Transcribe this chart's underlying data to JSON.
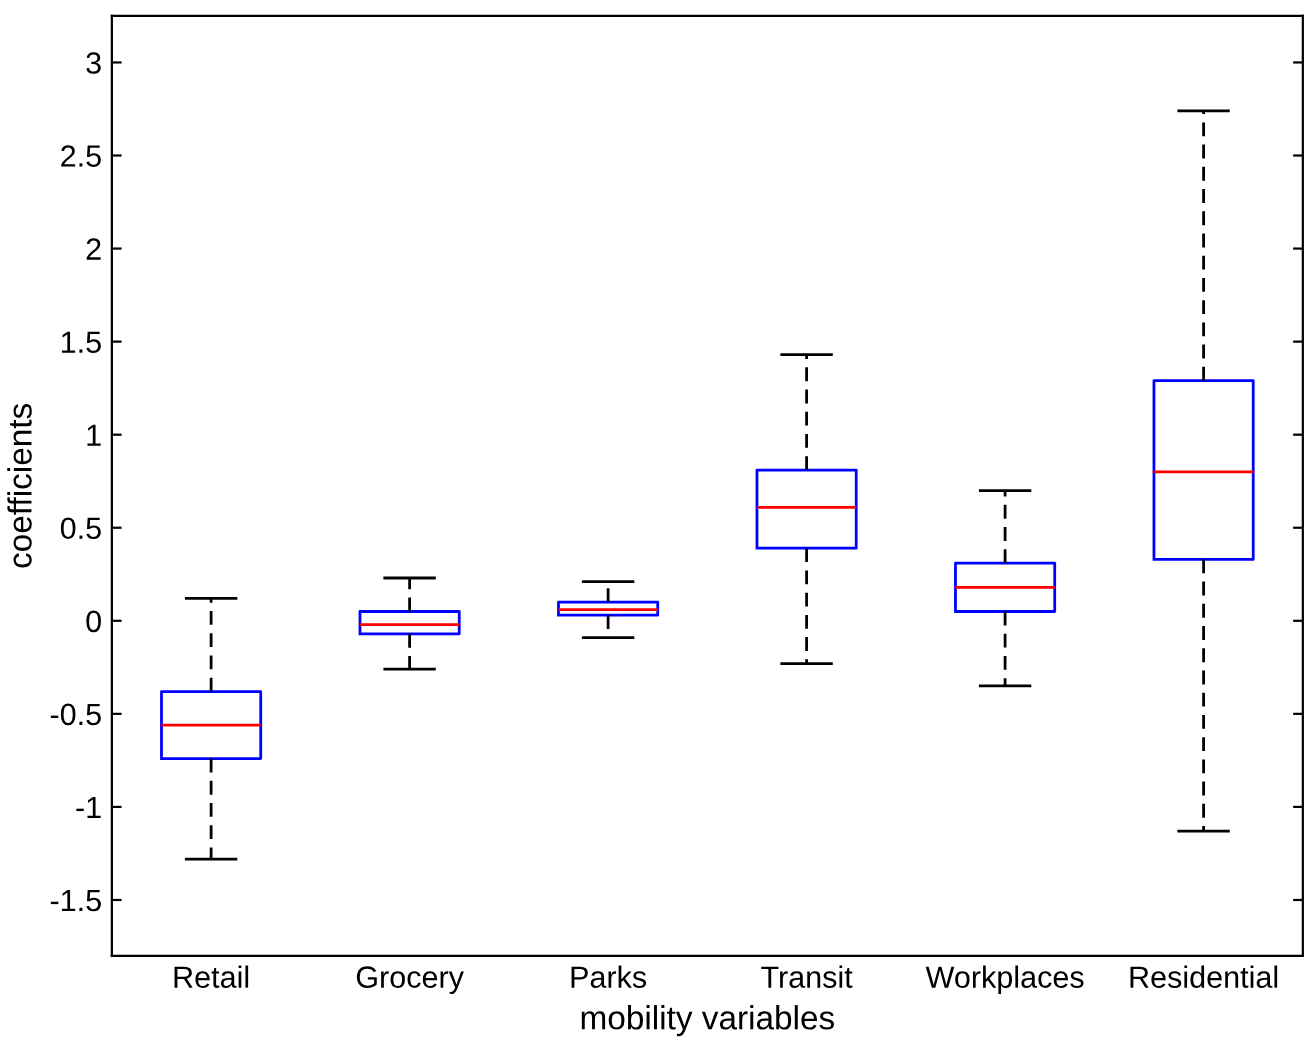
{
  "chart_data": {
    "type": "box",
    "xlabel": "mobility variables",
    "ylabel": "coefficients",
    "categories": [
      "Retail",
      "Grocery",
      "Parks",
      "Transit",
      "Workplaces",
      "Residential"
    ],
    "ylim": [
      -1.8,
      3.25
    ],
    "yticks": [
      -1.5,
      -1,
      -0.5,
      0,
      0.5,
      1,
      1.5,
      2,
      2.5,
      3
    ],
    "grid": false,
    "series": [
      {
        "color": "#0000ff",
        "boxes": [
          {
            "low": -1.28,
            "q1": -0.74,
            "median": -0.56,
            "q3": -0.38,
            "high": 0.12
          },
          {
            "low": -0.26,
            "q1": -0.07,
            "median": -0.02,
            "q3": 0.05,
            "high": 0.23
          },
          {
            "low": -0.09,
            "q1": 0.03,
            "median": 0.06,
            "q3": 0.1,
            "high": 0.21
          },
          {
            "low": -0.23,
            "q1": 0.39,
            "median": 0.61,
            "q3": 0.81,
            "high": 1.43
          },
          {
            "low": -0.35,
            "q1": 0.05,
            "median": 0.18,
            "q3": 0.31,
            "high": 0.7
          },
          {
            "low": -1.13,
            "q1": 0.33,
            "median": 0.8,
            "q3": 1.29,
            "high": 2.74
          }
        ]
      }
    ]
  }
}
